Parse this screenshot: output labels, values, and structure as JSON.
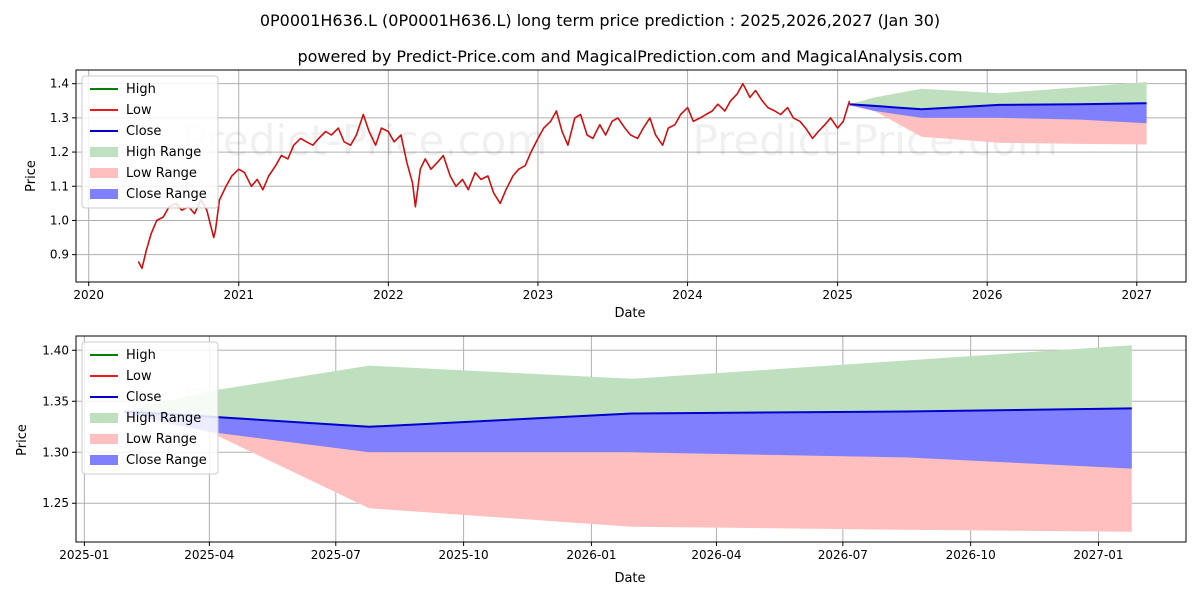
{
  "title": "0P0001H636.L (0P0001H636.L) long term price prediction : 2025,2026,2027 (Jan 30)",
  "subtitle": "powered by Predict-Price.com and MagicalPrediction.com and MagicalAnalysis.com",
  "watermark": "Predict-Price.com",
  "colors": {
    "high": "#008000",
    "low": "#e41a1c",
    "close": "#0000cc",
    "high_range": "#bfe0bf",
    "low_range": "#ffbfbf",
    "close_range": "#8080ff",
    "grid": "#b0b0b0"
  },
  "chart_data": [
    {
      "type": "line",
      "panel": "history",
      "xlabel": "Date",
      "ylabel": "Price",
      "x_tick_labels": [
        "2020",
        "2021",
        "2022",
        "2023",
        "2024",
        "2025",
        "2026",
        "2027"
      ],
      "y_tick_labels": [
        "0.9",
        "1.0",
        "1.1",
        "1.2",
        "1.3",
        "1.4"
      ],
      "xlim": [
        "2019-12-01",
        "2027-05-01"
      ],
      "ylim": [
        0.82,
        1.44
      ],
      "grid": true,
      "legend_position": "top-left",
      "legend": [
        "High",
        "Low",
        "Close",
        "High Range",
        "Low Range",
        "Close Range"
      ],
      "low_series": {
        "name": "Low",
        "x": [
          "2020-05-01",
          "2020-05-10",
          "2020-05-20",
          "2020-06-01",
          "2020-06-15",
          "2020-07-01",
          "2020-07-15",
          "2020-08-01",
          "2020-08-15",
          "2020-09-01",
          "2020-09-15",
          "2020-10-01",
          "2020-10-15",
          "2020-11-01",
          "2020-11-05",
          "2020-11-15",
          "2020-12-01",
          "2020-12-15",
          "2021-01-01",
          "2021-01-15",
          "2021-02-01",
          "2021-02-15",
          "2021-03-01",
          "2021-03-15",
          "2021-04-01",
          "2021-04-15",
          "2021-05-01",
          "2021-05-15",
          "2021-06-01",
          "2021-06-15",
          "2021-07-01",
          "2021-07-15",
          "2021-08-01",
          "2021-08-15",
          "2021-09-01",
          "2021-09-15",
          "2021-10-01",
          "2021-10-15",
          "2021-11-01",
          "2021-11-15",
          "2021-12-01",
          "2021-12-15",
          "2022-01-01",
          "2022-01-15",
          "2022-02-01",
          "2022-02-15",
          "2022-03-01",
          "2022-03-08",
          "2022-03-20",
          "2022-04-01",
          "2022-04-15",
          "2022-05-01",
          "2022-05-15",
          "2022-06-01",
          "2022-06-15",
          "2022-07-01",
          "2022-07-15",
          "2022-08-01",
          "2022-08-15",
          "2022-09-01",
          "2022-09-15",
          "2022-10-01",
          "2022-10-15",
          "2022-11-01",
          "2022-11-15",
          "2022-12-01",
          "2022-12-15",
          "2023-01-01",
          "2023-01-15",
          "2023-02-01",
          "2023-02-15",
          "2023-03-01",
          "2023-03-15",
          "2023-04-01",
          "2023-04-15",
          "2023-05-01",
          "2023-05-15",
          "2023-06-01",
          "2023-06-15",
          "2023-07-01",
          "2023-07-15",
          "2023-08-01",
          "2023-08-15",
          "2023-09-01",
          "2023-09-15",
          "2023-10-01",
          "2023-10-15",
          "2023-11-01",
          "2023-11-15",
          "2023-12-01",
          "2023-12-15",
          "2024-01-01",
          "2024-01-15",
          "2024-02-01",
          "2024-02-15",
          "2024-03-01",
          "2024-03-15",
          "2024-04-01",
          "2024-04-15",
          "2024-05-01",
          "2024-05-15",
          "2024-06-01",
          "2024-06-15",
          "2024-07-01",
          "2024-07-15",
          "2024-08-01",
          "2024-08-15",
          "2024-09-01",
          "2024-09-15",
          "2024-10-01",
          "2024-10-15",
          "2024-11-01",
          "2024-11-15",
          "2024-12-01",
          "2024-12-15",
          "2025-01-01",
          "2025-01-15",
          "2025-01-30"
        ],
        "values": [
          0.88,
          0.86,
          0.91,
          0.96,
          1.0,
          1.01,
          1.04,
          1.05,
          1.03,
          1.04,
          1.02,
          1.06,
          1.03,
          0.95,
          0.97,
          1.06,
          1.1,
          1.13,
          1.15,
          1.14,
          1.1,
          1.12,
          1.09,
          1.13,
          1.16,
          1.19,
          1.18,
          1.22,
          1.24,
          1.23,
          1.22,
          1.24,
          1.26,
          1.25,
          1.27,
          1.23,
          1.22,
          1.25,
          1.31,
          1.26,
          1.22,
          1.27,
          1.26,
          1.23,
          1.25,
          1.17,
          1.11,
          1.04,
          1.15,
          1.18,
          1.15,
          1.17,
          1.19,
          1.13,
          1.1,
          1.12,
          1.09,
          1.14,
          1.12,
          1.13,
          1.08,
          1.05,
          1.09,
          1.13,
          1.15,
          1.16,
          1.2,
          1.24,
          1.27,
          1.29,
          1.32,
          1.26,
          1.22,
          1.3,
          1.31,
          1.25,
          1.24,
          1.28,
          1.25,
          1.29,
          1.3,
          1.27,
          1.25,
          1.24,
          1.27,
          1.3,
          1.25,
          1.22,
          1.27,
          1.28,
          1.31,
          1.33,
          1.29,
          1.3,
          1.31,
          1.32,
          1.34,
          1.32,
          1.35,
          1.37,
          1.4,
          1.36,
          1.38,
          1.35,
          1.33,
          1.32,
          1.31,
          1.33,
          1.3,
          1.29,
          1.27,
          1.24,
          1.26,
          1.28,
          1.3,
          1.27,
          1.29,
          1.35
        ]
      },
      "forecast": {
        "x": [
          "2025-01-30",
          "2025-04-01",
          "2025-07-25",
          "2026-01-30",
          "2026-08-15",
          "2027-01-25"
        ],
        "close": [
          1.34,
          1.335,
          1.325,
          1.338,
          1.34,
          1.343
        ],
        "high_range": [
          1.34,
          1.36,
          1.385,
          1.372,
          1.39,
          1.405
        ],
        "low_range": [
          1.335,
          1.32,
          1.245,
          1.227,
          1.224,
          1.222
        ],
        "close_range_upper": [
          1.34,
          1.335,
          1.325,
          1.338,
          1.34,
          1.343
        ],
        "close_range_lower": [
          1.338,
          1.32,
          1.3,
          1.3,
          1.295,
          1.284
        ]
      }
    },
    {
      "type": "line",
      "panel": "forecast",
      "xlabel": "Date",
      "ylabel": "Price",
      "x_tick_labels": [
        "2025-01",
        "2025-04",
        "2025-07",
        "2025-10",
        "2026-01",
        "2026-04",
        "2026-07",
        "2026-10",
        "2027-01"
      ],
      "x_tick_dates": [
        "2025-01-01",
        "2025-04-01",
        "2025-07-01",
        "2025-10-01",
        "2026-01-01",
        "2026-04-01",
        "2026-07-01",
        "2026-10-01",
        "2027-01-01"
      ],
      "y_tick_labels": [
        "1.25",
        "1.30",
        "1.35",
        "1.40"
      ],
      "y_ticks": [
        1.25,
        1.3,
        1.35,
        1.4
      ],
      "xlim": [
        "2024-12-26",
        "2027-03-05"
      ],
      "ylim": [
        1.212,
        1.414
      ],
      "grid": true,
      "legend_position": "top-left",
      "legend": [
        "High",
        "Low",
        "Close",
        "High Range",
        "Low Range",
        "Close Range"
      ],
      "forecast": {
        "x": [
          "2025-01-30",
          "2025-04-01",
          "2025-07-25",
          "2026-01-30",
          "2026-08-15",
          "2027-01-25"
        ],
        "close": [
          1.34,
          1.335,
          1.325,
          1.338,
          1.34,
          1.343
        ],
        "high_range": [
          1.34,
          1.36,
          1.385,
          1.372,
          1.39,
          1.405
        ],
        "low_range": [
          1.335,
          1.32,
          1.245,
          1.227,
          1.224,
          1.222
        ],
        "close_range_upper": [
          1.34,
          1.335,
          1.325,
          1.338,
          1.34,
          1.343
        ],
        "close_range_lower": [
          1.338,
          1.32,
          1.3,
          1.3,
          1.295,
          1.284
        ]
      }
    }
  ]
}
